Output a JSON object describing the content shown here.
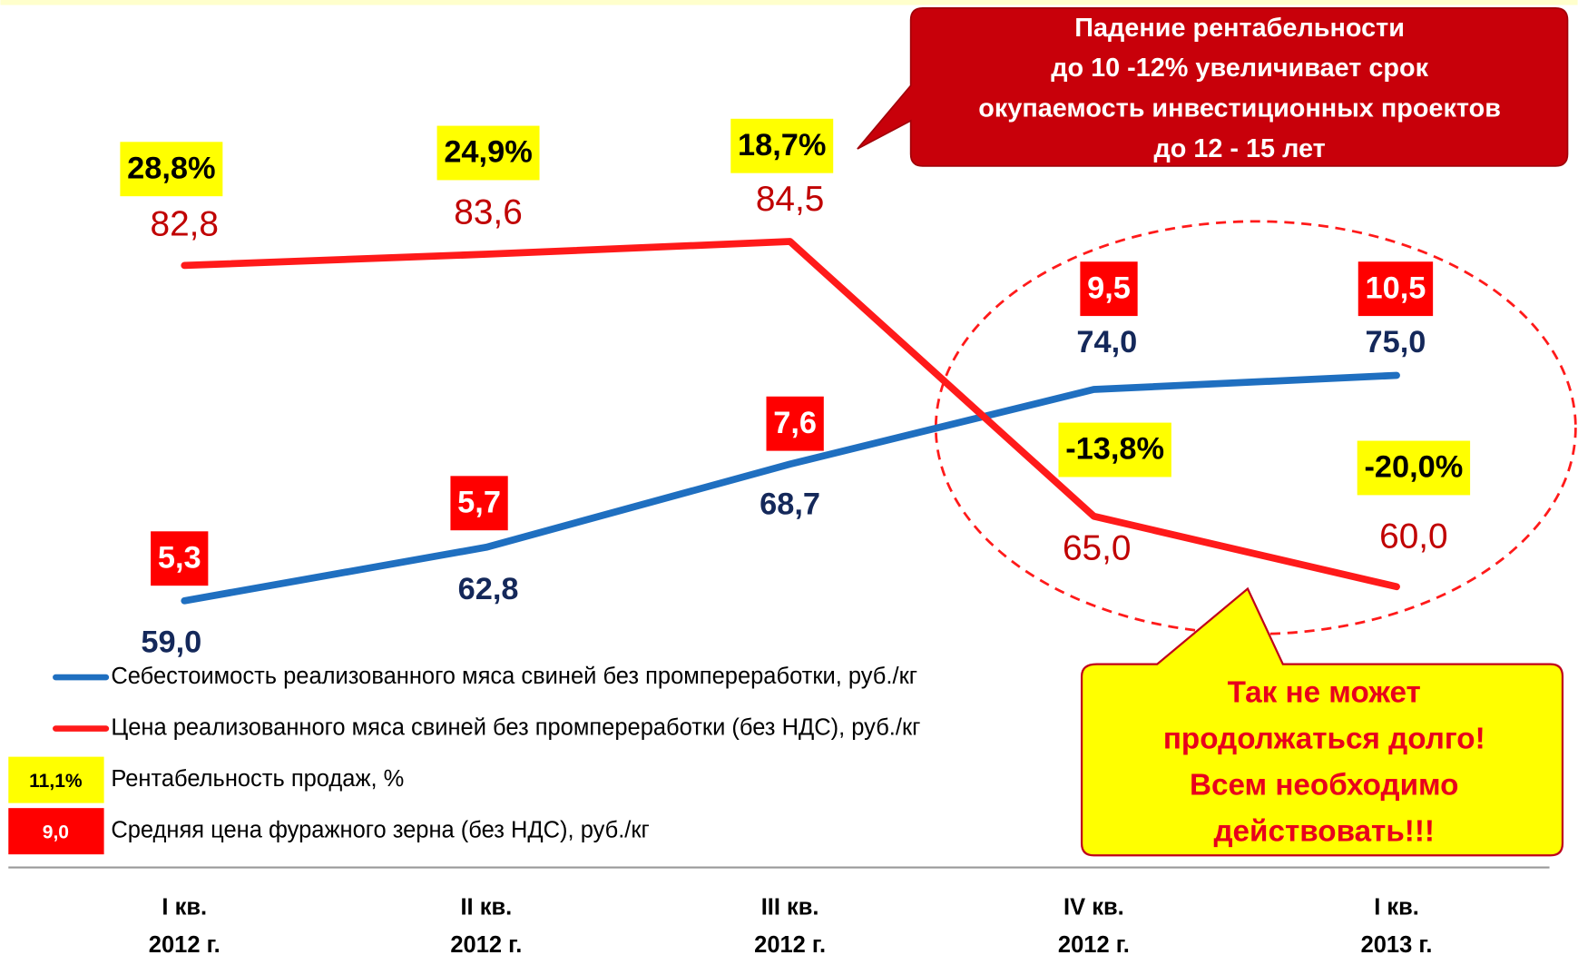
{
  "chart_data": {
    "type": "line",
    "categories": [
      [
        "I кв.",
        "2012 г."
      ],
      [
        "II кв.",
        "2012 г."
      ],
      [
        "III кв.",
        "2012 г."
      ],
      [
        "IV кв.",
        "2012 г."
      ],
      [
        "I кв.",
        "2013 г."
      ]
    ],
    "ylim": [
      50,
      90
    ],
    "series": [
      {
        "name": "Себестоимость реализованного мяса свиней без промпереработки, руб./кг",
        "color": "#1f6fc0",
        "kind": "line",
        "values": [
          59.0,
          62.8,
          68.7,
          74.0,
          75.0
        ],
        "value_labels": [
          "59,0",
          "62,8",
          "68,7",
          "74,0",
          "75,0"
        ]
      },
      {
        "name": "Цена реализованного мяса свиней без промпереработки (без НДС), руб./кг",
        "color": "#ff1a1a",
        "kind": "line",
        "values": [
          82.8,
          83.6,
          84.5,
          65.0,
          60.0
        ],
        "value_labels": [
          "82,8",
          "83,6",
          "84,5",
          "65,0",
          "60,0"
        ]
      },
      {
        "name": "Рентабельность продаж, %",
        "color": "#ffff00",
        "kind": "box",
        "values": [
          28.8,
          24.9,
          18.7,
          -13.8,
          -20.0
        ],
        "value_labels": [
          "28,8%",
          "24,9%",
          "18,7%",
          "-13,8%",
          "-20,0%"
        ],
        "legend_sample": {
          "value": 11.1,
          "label": "11,1%"
        }
      },
      {
        "name": "Средняя цена фуражного зерна (без НДС), руб./кг",
        "color": "#ff0000",
        "kind": "box",
        "values": [
          5.3,
          5.7,
          7.6,
          9.5,
          10.5
        ],
        "value_labels": [
          "5,3",
          "5,7",
          "7,6",
          "9,5",
          "10,5"
        ],
        "legend_sample": {
          "value": 9.0,
          "label": "9,0"
        }
      }
    ],
    "annotations": [
      {
        "lines": [
          "Падение  рентабельности",
          "до 10 -12%  увеличивает срок",
          "окупаемость инвестиционных проектов",
          "до 12 - 15 лет"
        ]
      },
      {
        "lines": [
          "Так не может",
          "продолжаться долго!",
          "Всем необходимо",
          "действовать!!!"
        ]
      }
    ]
  }
}
